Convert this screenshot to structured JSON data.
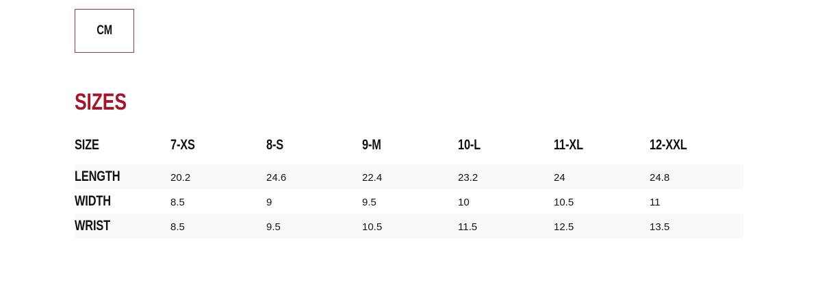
{
  "unit_toggle": {
    "label": "CM"
  },
  "section_title": "SIZES",
  "accent_color": "#a3162a",
  "table": {
    "header": [
      "SIZE",
      "7-XS",
      "8-S",
      "9-M",
      "10-L",
      "11-XL",
      "12-XXL"
    ],
    "rows": [
      {
        "label": "LENGTH",
        "values": [
          "20.2",
          "24.6",
          "22.4",
          "23.2",
          "24",
          "24.8"
        ]
      },
      {
        "label": "WIDTH",
        "values": [
          "8.5",
          "9",
          "9.5",
          "10",
          "10.5",
          "11"
        ]
      },
      {
        "label": "WRIST",
        "values": [
          "8.5",
          "9.5",
          "10.5",
          "11.5",
          "12.5",
          "13.5"
        ]
      }
    ]
  }
}
